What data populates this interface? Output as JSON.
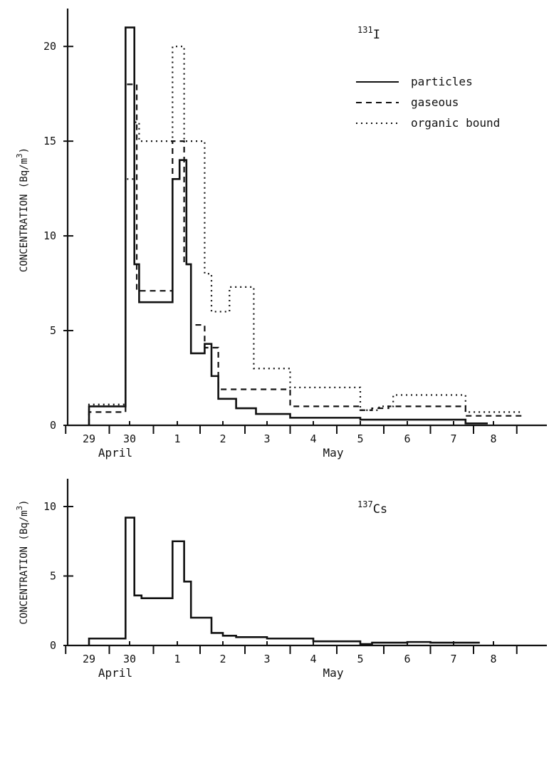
{
  "chart_data": [
    {
      "type": "line",
      "step": true,
      "isotope_mass": "131",
      "isotope_symbol": "I",
      "ylabel": "CONCENTRATION (Bq/m",
      "ylabel_sup": "3",
      "ylabel_end": ")",
      "ylim": [
        0,
        22
      ],
      "yticks": [
        "0",
        "5",
        "10",
        "15",
        "20"
      ],
      "xticks": [
        "29",
        "30",
        "1",
        "2",
        "3",
        "4",
        "5",
        "6",
        "7",
        "8"
      ],
      "months": [
        "April",
        "May"
      ],
      "legend_position": "top-right",
      "grid": false,
      "series": [
        {
          "name": "particles",
          "style": "solid",
          "x": [
            "29.0",
            "29.9",
            "30.1",
            "30.2",
            "30.4",
            "30.9",
            "1.05",
            "1.2",
            "1.3",
            "1.6",
            "1.75",
            "1.9",
            "2.3",
            "2.75",
            "3.5",
            "5.0",
            "6.0",
            "7.3",
            "7.5"
          ],
          "y": [
            1.0,
            21.0,
            8.5,
            6.5,
            6.5,
            13.0,
            14.0,
            8.5,
            3.8,
            4.3,
            2.6,
            1.4,
            0.9,
            0.6,
            0.4,
            0.3,
            0.3,
            0.1,
            0.1
          ]
        },
        {
          "name": "gaseous",
          "style": "dashed",
          "x": [
            "29.0",
            "29.9",
            "30.15",
            "30.4",
            "30.9",
            "1.15",
            "1.3",
            "1.6",
            "1.9",
            "2.3",
            "3.5",
            "5.0",
            "5.25",
            "5.6",
            "7.3",
            "8.3"
          ],
          "y": [
            0.7,
            18.0,
            7.1,
            7.1,
            15.0,
            8.5,
            5.3,
            4.1,
            1.9,
            1.9,
            1.0,
            0.8,
            0.9,
            1.0,
            0.5,
            0.5
          ]
        },
        {
          "name": "organic bound",
          "style": "dotted",
          "x": [
            "29.0",
            "29.9",
            "30.1",
            "30.2",
            "30.4",
            "30.9",
            "1.15",
            "1.6",
            "1.75",
            "2.15",
            "2.7",
            "3.5",
            "5.0",
            "5.4",
            "5.7",
            "6.3",
            "7.3",
            "8.3"
          ],
          "y": [
            1.1,
            13.0,
            16.0,
            15.0,
            15.0,
            20.0,
            15.0,
            8.0,
            6.0,
            7.3,
            3.0,
            2.0,
            0.8,
            1.0,
            1.6,
            1.6,
            0.7,
            0.7
          ]
        }
      ]
    },
    {
      "type": "line",
      "step": true,
      "isotope_mass": "137",
      "isotope_symbol": "Cs",
      "ylabel": "CONCENTRATION (Bq/m",
      "ylabel_sup": "3",
      "ylabel_end": ")",
      "ylim": [
        0,
        12
      ],
      "yticks": [
        "0",
        "5",
        "10"
      ],
      "xticks": [
        "29",
        "30",
        "1",
        "2",
        "3",
        "4",
        "5",
        "6",
        "7",
        "8"
      ],
      "months": [
        "April",
        "May"
      ],
      "grid": false,
      "series": [
        {
          "style": "solid",
          "x": [
            "29.0",
            "29.9",
            "30.1",
            "30.25",
            "30.9",
            "1.15",
            "1.3",
            "1.75",
            "2.0",
            "2.3",
            "3.0",
            "4.0",
            "5.0",
            "5.25",
            "6.0",
            "6.5",
            "7.3"
          ],
          "y": [
            0.5,
            9.2,
            3.6,
            3.4,
            7.5,
            4.6,
            2.0,
            0.9,
            0.7,
            0.6,
            0.5,
            0.3,
            0.1,
            0.2,
            0.25,
            0.2,
            0.2
          ]
        }
      ]
    }
  ]
}
